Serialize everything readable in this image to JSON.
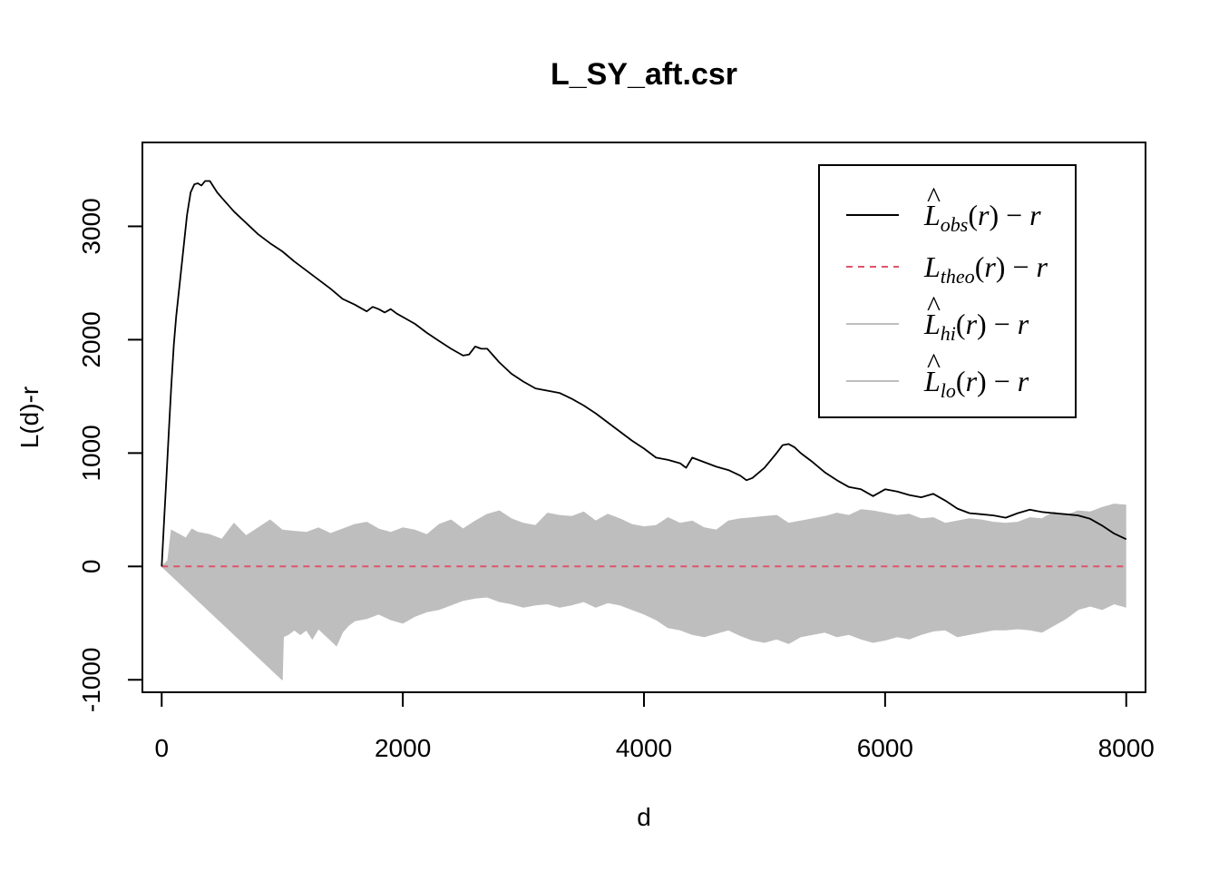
{
  "chart_data": {
    "type": "line",
    "title": "L_SY_aft.csr",
    "xlabel": "d",
    "ylabel": "L(d)-r",
    "xlim": [
      -160,
      8160
    ],
    "ylim": [
      -1110,
      3740
    ],
    "x_ticks": [
      0,
      2000,
      4000,
      6000,
      8000
    ],
    "x_tick_labels": [
      "0",
      "2000",
      "4000",
      "6000",
      "8000"
    ],
    "y_ticks": [
      -1000,
      0,
      1000,
      2000,
      3000
    ],
    "y_tick_labels": [
      "-1000",
      "0",
      "1000",
      "2000",
      "3000"
    ],
    "legend_position": "top-right",
    "legend": [
      {
        "name": "obs",
        "base": "L",
        "hat": true,
        "sub": "obs",
        "suffix_open": "(",
        "suffix_var": "r",
        "suffix_close": ")",
        "minus": "−",
        "tail": "r",
        "color": "#000000",
        "style": "solid"
      },
      {
        "name": "theo",
        "base": "L",
        "hat": false,
        "sub": "theo",
        "suffix_open": "(",
        "suffix_var": "r",
        "suffix_close": ")",
        "minus": "−",
        "tail": "r",
        "color": "#DF536B",
        "style": "dashed"
      },
      {
        "name": "hi",
        "base": "L",
        "hat": true,
        "sub": "hi",
        "suffix_open": "(",
        "suffix_var": "r",
        "suffix_close": ")",
        "minus": "−",
        "tail": "r",
        "color": "#BEBEBE",
        "style": "solid"
      },
      {
        "name": "lo",
        "base": "L",
        "hat": true,
        "sub": "lo",
        "suffix_open": "(",
        "suffix_var": "r",
        "suffix_close": ")",
        "minus": "−",
        "tail": "r",
        "color": "#BEBEBE",
        "style": "solid"
      }
    ],
    "series": [
      {
        "name": "obs",
        "color": "#000000",
        "x": [
          0,
          20,
          40,
          60,
          80,
          100,
          120,
          150,
          180,
          210,
          240,
          270,
          300,
          330,
          360,
          400,
          430,
          460,
          500,
          600,
          700,
          800,
          900,
          1000,
          1100,
          1200,
          1300,
          1400,
          1500,
          1600,
          1700,
          1750,
          1800,
          1850,
          1900,
          1950,
          2000,
          2100,
          2200,
          2300,
          2400,
          2500,
          2550,
          2600,
          2650,
          2700,
          2800,
          2900,
          3000,
          3100,
          3200,
          3300,
          3400,
          3500,
          3600,
          3700,
          3800,
          3900,
          4000,
          4100,
          4200,
          4300,
          4350,
          4400,
          4500,
          4600,
          4700,
          4800,
          4850,
          4900,
          5000,
          5100,
          5150,
          5200,
          5250,
          5300,
          5400,
          5500,
          5600,
          5700,
          5800,
          5900,
          6000,
          6100,
          6200,
          6300,
          6400,
          6500,
          6600,
          6700,
          6800,
          6900,
          7000,
          7100,
          7200,
          7300,
          7400,
          7500,
          7600,
          7700,
          7800,
          7900,
          8000
        ],
        "y": [
          0,
          400,
          800,
          1200,
          1600,
          1950,
          2200,
          2500,
          2800,
          3100,
          3300,
          3370,
          3380,
          3360,
          3400,
          3400,
          3350,
          3300,
          3250,
          3130,
          3030,
          2930,
          2850,
          2780,
          2690,
          2610,
          2530,
          2450,
          2360,
          2310,
          2250,
          2290,
          2270,
          2240,
          2270,
          2230,
          2200,
          2140,
          2060,
          1990,
          1920,
          1860,
          1870,
          1940,
          1920,
          1920,
          1800,
          1700,
          1630,
          1570,
          1550,
          1530,
          1480,
          1420,
          1350,
          1270,
          1190,
          1110,
          1040,
          960,
          940,
          910,
          870,
          960,
          920,
          880,
          850,
          800,
          760,
          780,
          870,
          1000,
          1070,
          1080,
          1050,
          1000,
          920,
          830,
          760,
          700,
          680,
          620,
          680,
          660,
          630,
          610,
          640,
          580,
          510,
          470,
          460,
          450,
          430,
          470,
          500,
          480,
          470,
          460,
          450,
          420,
          360,
          290,
          240
        ]
      },
      {
        "name": "theo",
        "color": "#DF536B",
        "x": [
          0,
          8000
        ],
        "y": [
          0,
          0
        ]
      },
      {
        "name": "hi",
        "color": "#BEBEBE",
        "x": [
          0,
          50,
          80,
          150,
          200,
          250,
          300,
          400,
          500,
          600,
          700,
          800,
          900,
          1000,
          1100,
          1200,
          1300,
          1400,
          1500,
          1600,
          1700,
          1800,
          1900,
          2000,
          2100,
          2200,
          2300,
          2400,
          2500,
          2600,
          2700,
          2800,
          2900,
          3000,
          3100,
          3200,
          3300,
          3400,
          3500,
          3600,
          3700,
          3800,
          3900,
          4000,
          4100,
          4200,
          4300,
          4400,
          4500,
          4600,
          4700,
          4800,
          4900,
          5000,
          5100,
          5200,
          5300,
          5400,
          5500,
          5600,
          5700,
          5800,
          5900,
          6000,
          6100,
          6200,
          6300,
          6400,
          6500,
          6600,
          6700,
          6800,
          6900,
          7000,
          7100,
          7200,
          7300,
          7400,
          7500,
          7600,
          7700,
          7800,
          7900,
          8000
        ],
        "y": [
          0,
          50,
          320,
          280,
          250,
          330,
          300,
          280,
          240,
          380,
          270,
          340,
          410,
          320,
          310,
          300,
          340,
          290,
          330,
          370,
          390,
          330,
          300,
          340,
          320,
          280,
          370,
          410,
          330,
          400,
          460,
          490,
          420,
          380,
          360,
          470,
          450,
          440,
          480,
          400,
          460,
          420,
          370,
          350,
          360,
          430,
          380,
          400,
          340,
          320,
          400,
          420,
          430,
          440,
          450,
          380,
          400,
          420,
          440,
          470,
          450,
          500,
          490,
          470,
          450,
          460,
          420,
          430,
          380,
          400,
          420,
          410,
          390,
          380,
          390,
          430,
          420,
          480,
          450,
          490,
          480,
          520,
          550,
          540
        ]
      },
      {
        "name": "lo",
        "color": "#BEBEBE",
        "x": [
          0,
          100,
          200,
          300,
          400,
          500,
          600,
          700,
          800,
          900,
          1000,
          1010,
          1050,
          1100,
          1150,
          1200,
          1250,
          1300,
          1350,
          1400,
          1450,
          1500,
          1550,
          1600,
          1700,
          1800,
          1900,
          2000,
          2100,
          2200,
          2300,
          2400,
          2500,
          2600,
          2700,
          2800,
          2900,
          3000,
          3100,
          3200,
          3300,
          3400,
          3500,
          3600,
          3700,
          3800,
          3900,
          4000,
          4100,
          4200,
          4300,
          4400,
          4500,
          4600,
          4700,
          4800,
          4900,
          5000,
          5100,
          5200,
          5300,
          5400,
          5500,
          5600,
          5700,
          5800,
          5900,
          6000,
          6100,
          6200,
          6300,
          6400,
          6500,
          6600,
          6700,
          6800,
          6900,
          7000,
          7100,
          7200,
          7300,
          7400,
          7500,
          7600,
          7700,
          7800,
          7900,
          8000
        ],
        "y": [
          0,
          -100,
          -200,
          -300,
          -400,
          -500,
          -600,
          -700,
          -800,
          -900,
          -1000,
          -620,
          -600,
          -560,
          -600,
          -560,
          -640,
          -550,
          -600,
          -650,
          -700,
          -580,
          -520,
          -480,
          -460,
          -420,
          -470,
          -500,
          -440,
          -400,
          -380,
          -340,
          -300,
          -280,
          -270,
          -310,
          -330,
          -360,
          -340,
          -330,
          -360,
          -340,
          -310,
          -360,
          -320,
          -340,
          -380,
          -420,
          -470,
          -540,
          -560,
          -600,
          -620,
          -590,
          -560,
          -610,
          -650,
          -670,
          -640,
          -680,
          -620,
          -600,
          -580,
          -620,
          -600,
          -640,
          -670,
          -650,
          -620,
          -640,
          -600,
          -570,
          -560,
          -620,
          -600,
          -580,
          -560,
          -560,
          -550,
          -560,
          -580,
          -520,
          -460,
          -380,
          -350,
          -380,
          -330,
          -360
        ]
      }
    ]
  }
}
